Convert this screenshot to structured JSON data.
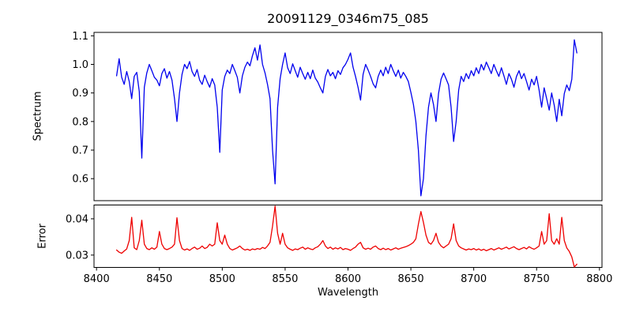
{
  "title": "20091129_0346m75_085",
  "chart_data": {
    "type": "line",
    "title": "20091129_0346m75_085",
    "xlabel": "Wavelength",
    "grid": false,
    "legend": "none",
    "xlim": [
      8398,
      8802
    ],
    "xticks": [
      8400,
      8450,
      8500,
      8550,
      8600,
      8650,
      8700,
      8750,
      8800
    ],
    "x_start": 8416,
    "x_step": 2,
    "panels": [
      {
        "name": "spectrum",
        "ylabel": "Spectrum",
        "color": "#0000ee",
        "ylim": [
          0.523,
          1.112
        ],
        "yticks": [
          "0.6",
          "0.7",
          "0.8",
          "0.9",
          "1.0",
          "1.1"
        ],
        "values": [
          0.96,
          1.02,
          0.955,
          0.93,
          0.975,
          0.94,
          0.88,
          0.958,
          0.972,
          0.905,
          0.672,
          0.92,
          0.97,
          1.0,
          0.978,
          0.955,
          0.945,
          0.925,
          0.968,
          0.985,
          0.952,
          0.975,
          0.945,
          0.88,
          0.8,
          0.9,
          0.965,
          1.0,
          0.985,
          1.01,
          0.975,
          0.958,
          0.982,
          0.945,
          0.93,
          0.962,
          0.94,
          0.92,
          0.95,
          0.928,
          0.85,
          0.692,
          0.91,
          0.958,
          0.98,
          0.968,
          1.0,
          0.978,
          0.955,
          0.9,
          0.96,
          0.99,
          1.008,
          0.995,
          1.03,
          1.058,
          1.015,
          1.068,
          1.0,
          0.97,
          0.93,
          0.88,
          0.7,
          0.582,
          0.85,
          0.95,
          1.0,
          1.04,
          0.988,
          0.968,
          1.002,
          0.978,
          0.955,
          0.99,
          0.968,
          0.948,
          0.972,
          0.95,
          0.98,
          0.952,
          0.938,
          0.918,
          0.9,
          0.958,
          0.982,
          0.96,
          0.972,
          0.95,
          0.978,
          0.965,
          0.988,
          1.0,
          1.018,
          1.04,
          0.99,
          0.958,
          0.92,
          0.875,
          0.965,
          1.0,
          0.98,
          0.958,
          0.932,
          0.918,
          0.958,
          0.98,
          0.96,
          0.99,
          0.968,
          1.0,
          0.978,
          0.958,
          0.98,
          0.952,
          0.972,
          0.958,
          0.94,
          0.902,
          0.86,
          0.8,
          0.7,
          0.54,
          0.6,
          0.75,
          0.85,
          0.9,
          0.86,
          0.8,
          0.898,
          0.948,
          0.97,
          0.95,
          0.928,
          0.85,
          0.73,
          0.8,
          0.91,
          0.958,
          0.94,
          0.968,
          0.95,
          0.978,
          0.96,
          0.988,
          0.968,
          1.0,
          0.98,
          1.008,
          0.988,
          0.968,
          1.0,
          0.978,
          0.958,
          0.988,
          0.96,
          0.93,
          0.968,
          0.948,
          0.92,
          0.958,
          0.978,
          0.95,
          0.968,
          0.94,
          0.91,
          0.948,
          0.928,
          0.958,
          0.91,
          0.85,
          0.918,
          0.88,
          0.84,
          0.9,
          0.858,
          0.8,
          0.878,
          0.82,
          0.898,
          0.928,
          0.908,
          0.948,
          1.086,
          1.04
        ]
      },
      {
        "name": "error",
        "ylabel": "Error",
        "color": "#ee0000",
        "ylim": [
          0.0266,
          0.0438
        ],
        "yticks": [
          "0.03",
          "0.04"
        ],
        "values": [
          0.0314,
          0.0308,
          0.0305,
          0.0311,
          0.0317,
          0.034,
          0.0404,
          0.032,
          0.0315,
          0.034,
          0.0396,
          0.033,
          0.0318,
          0.0315,
          0.032,
          0.0316,
          0.0322,
          0.0365,
          0.033,
          0.0318,
          0.0315,
          0.0318,
          0.0322,
          0.033,
          0.0403,
          0.034,
          0.0318,
          0.0314,
          0.0317,
          0.0313,
          0.0318,
          0.0322,
          0.0316,
          0.0319,
          0.0325,
          0.0318,
          0.0321,
          0.033,
          0.0325,
          0.033,
          0.0389,
          0.034,
          0.033,
          0.0355,
          0.033,
          0.0318,
          0.0314,
          0.0317,
          0.032,
          0.0325,
          0.0318,
          0.0314,
          0.0316,
          0.0313,
          0.0317,
          0.0315,
          0.0318,
          0.0316,
          0.0321,
          0.0318,
          0.0325,
          0.0335,
          0.038,
          0.0435,
          0.036,
          0.033,
          0.036,
          0.033,
          0.032,
          0.0316,
          0.0313,
          0.0317,
          0.0315,
          0.0319,
          0.0322,
          0.0316,
          0.032,
          0.0317,
          0.0315,
          0.032,
          0.0323,
          0.033,
          0.034,
          0.0325,
          0.0318,
          0.0322,
          0.0316,
          0.032,
          0.0317,
          0.0321,
          0.0315,
          0.0318,
          0.0316,
          0.0313,
          0.0318,
          0.0322,
          0.033,
          0.0335,
          0.032,
          0.0316,
          0.0319,
          0.0316,
          0.0322,
          0.0325,
          0.0318,
          0.0315,
          0.0319,
          0.0315,
          0.0318,
          0.0314,
          0.0317,
          0.032,
          0.0316,
          0.0319,
          0.0321,
          0.0323,
          0.0326,
          0.033,
          0.0335,
          0.0345,
          0.0385,
          0.042,
          0.039,
          0.0355,
          0.0335,
          0.033,
          0.034,
          0.036,
          0.0335,
          0.0325,
          0.032,
          0.0325,
          0.033,
          0.0345,
          0.0386,
          0.034,
          0.0325,
          0.032,
          0.0317,
          0.0314,
          0.0317,
          0.0315,
          0.0318,
          0.0314,
          0.0317,
          0.0313,
          0.0316,
          0.0312,
          0.0315,
          0.0318,
          0.0314,
          0.0317,
          0.032,
          0.0316,
          0.0319,
          0.0322,
          0.0317,
          0.032,
          0.0323,
          0.0318,
          0.0315,
          0.0318,
          0.0321,
          0.0317,
          0.0323,
          0.0319,
          0.0316,
          0.032,
          0.0325,
          0.0365,
          0.033,
          0.034,
          0.0414,
          0.034,
          0.033,
          0.0345,
          0.033,
          0.0404,
          0.034,
          0.032,
          0.031,
          0.0295,
          0.0267,
          0.0275
        ]
      }
    ]
  }
}
